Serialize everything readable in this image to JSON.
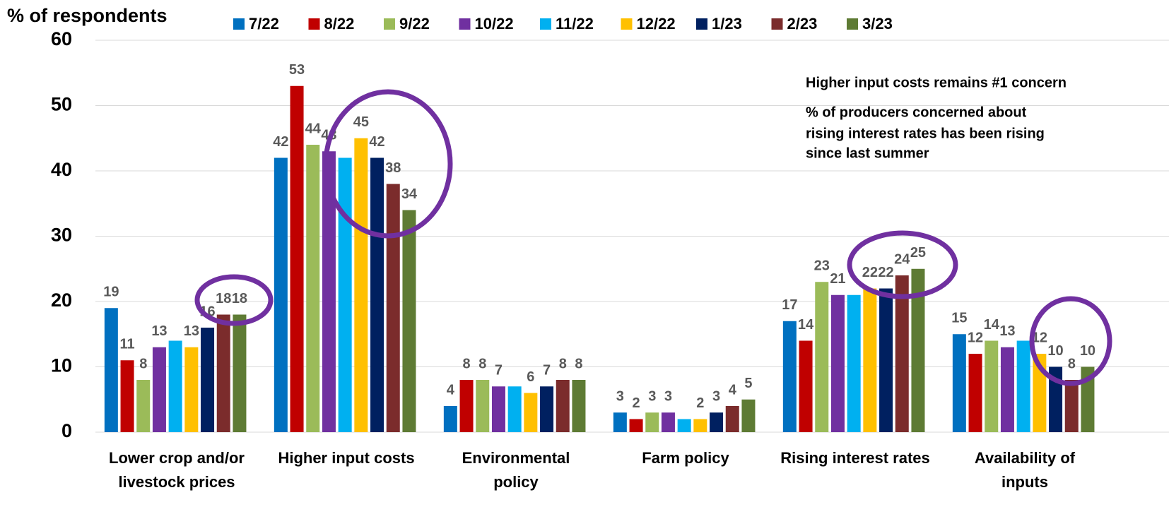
{
  "chart_data": {
    "type": "bar",
    "y_label": "% of respondents",
    "categories": [
      [
        "Lower crop and/or",
        "livestock prices"
      ],
      [
        "Higher input costs"
      ],
      [
        "Environmental",
        "policy"
      ],
      [
        "Farm policy"
      ],
      [
        "Rising interest rates"
      ],
      [
        "Availability of",
        "inputs"
      ]
    ],
    "series": [
      {
        "name": "7/22",
        "color": "#0070c0",
        "values": [
          19,
          42,
          4,
          3,
          17,
          15
        ]
      },
      {
        "name": "8/22",
        "color": "#c00000",
        "values": [
          11,
          53,
          8,
          2,
          14,
          12
        ]
      },
      {
        "name": "9/22",
        "color": "#9bbb59",
        "values": [
          8,
          44,
          8,
          3,
          23,
          14
        ]
      },
      {
        "name": "10/22",
        "color": "#7030a0",
        "values": [
          13,
          43,
          7,
          3,
          21,
          13
        ]
      },
      {
        "name": "11/22",
        "color": "#00b0f0",
        "values": [
          14,
          42,
          7,
          2,
          21,
          14
        ],
        "data_labels": false
      },
      {
        "name": "12/22",
        "color": "#ffc000",
        "values": [
          13,
          45,
          6,
          2,
          22,
          12
        ]
      },
      {
        "name": "1/23",
        "color": "#002060",
        "values": [
          16,
          42,
          7,
          3,
          22,
          10
        ]
      },
      {
        "name": "2/23",
        "color": "#7b2c2c",
        "values": [
          18,
          38,
          8,
          4,
          24,
          8
        ]
      },
      {
        "name": "3/23",
        "color": "#5e7b34",
        "values": [
          18,
          34,
          8,
          5,
          25,
          10
        ]
      }
    ],
    "ylim": [
      0,
      60
    ],
    "yticks": [
      0,
      10,
      20,
      30,
      40,
      50,
      60
    ],
    "grid": true,
    "annotations": [
      "Higher input costs remains #1 concern",
      "% of producers concerned about",
      "rising interest rates has been rising",
      "since last summer"
    ]
  }
}
